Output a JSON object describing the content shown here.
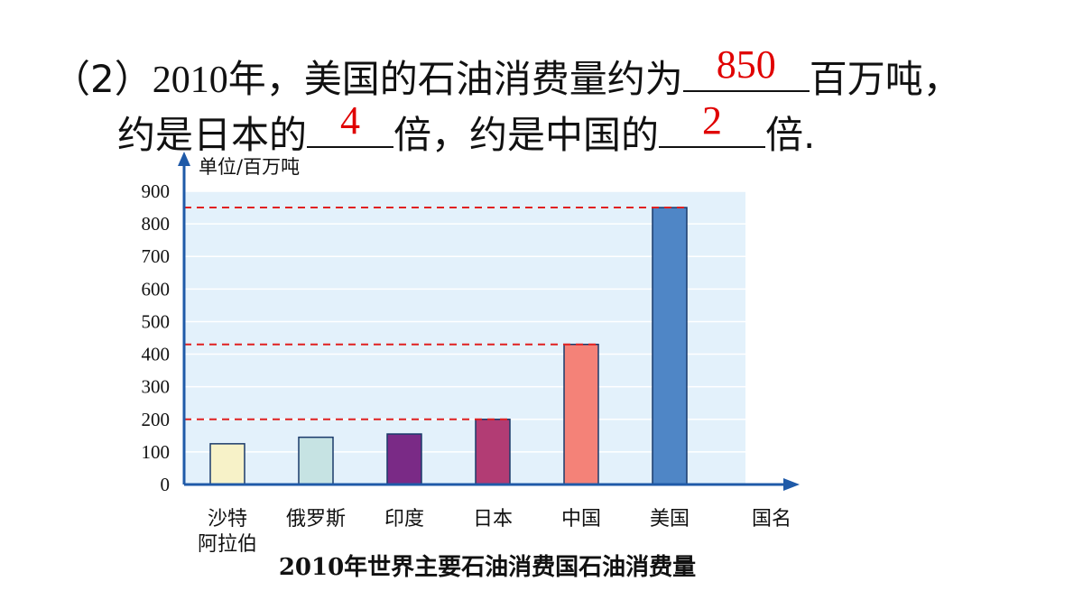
{
  "question": {
    "prefix": "（2）",
    "year": "2010",
    "text1": "年，美国的石油消费量约为",
    "answer1": "850",
    "text2": "百万吨，",
    "text3": "约是日本的",
    "answer2": "4",
    "text4": "倍，约是中国的",
    "answer3": "2",
    "text5": "倍."
  },
  "colors": {
    "plot_bg": "#e3f1fb",
    "axis": "#1f5aa8",
    "grid": "#ffffff",
    "reference_line": "#e02020",
    "answer_text": "#e00000"
  },
  "chart_data": {
    "type": "bar",
    "title": "2010年世界主要石油消费国石油消费量",
    "ylabel": "单位/百万吨",
    "xlabel": "国名",
    "ylim": [
      0,
      900
    ],
    "yticks": [
      0,
      100,
      200,
      300,
      400,
      500,
      600,
      700,
      800,
      900
    ],
    "grid": true,
    "categories": [
      "沙特\n阿拉伯",
      "俄罗斯",
      "印度",
      "日本",
      "中国",
      "美国"
    ],
    "values": [
      125,
      145,
      155,
      200,
      430,
      850
    ],
    "bar_colors": [
      "#f7f2c8",
      "#c6e3e3",
      "#7a2a86",
      "#b23c74",
      "#f48278",
      "#4f86c6"
    ],
    "reference_lines": [
      850,
      430,
      200
    ]
  }
}
